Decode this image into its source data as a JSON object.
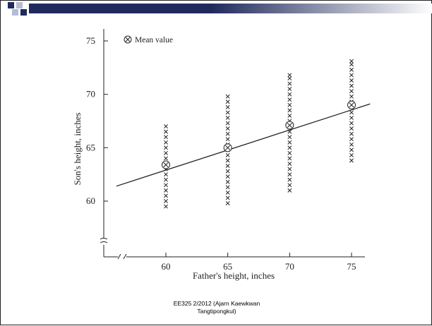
{
  "colors": {
    "banner_dark": "#1f2a5c",
    "banner_light": "#b4bcd8",
    "banner_gradient_end": "#ffffff",
    "ink": "#222222"
  },
  "footer": {
    "line1": "EE325 2/2012 (Ajarn Kaewkwan",
    "line2": "Tangtipongkul)"
  },
  "chart_data": {
    "type": "scatter",
    "title": "",
    "xlabel": "Father's height, inches",
    "ylabel": "Son's height, inches",
    "xlim": [
      56,
      76
    ],
    "ylim": [
      56,
      76
    ],
    "x_ticks": [
      60,
      65,
      70,
      75
    ],
    "y_ticks": [
      60,
      65,
      70,
      75
    ],
    "axis_breaks": true,
    "grid": false,
    "legend": {
      "label": "Mean value",
      "symbol": "circled-x",
      "placement": "top-left"
    },
    "series": [
      {
        "marker": "x",
        "x": 60,
        "y": [
          59.5,
          60.0,
          60.5,
          61.0,
          61.5,
          62.0,
          62.5,
          63.0,
          63.5,
          64.0,
          64.5,
          65.0,
          65.5,
          66.0,
          66.5,
          67.0
        ]
      },
      {
        "marker": "x",
        "x": 65,
        "y": [
          59.8,
          60.3,
          60.8,
          61.3,
          61.8,
          62.3,
          62.8,
          63.3,
          63.8,
          64.3,
          64.8,
          65.3,
          65.8,
          66.3,
          66.8,
          67.3,
          67.8,
          68.3,
          68.8,
          69.3,
          69.8
        ]
      },
      {
        "marker": "x",
        "x": 70,
        "y": [
          61.0,
          61.5,
          62.0,
          62.5,
          63.0,
          63.5,
          64.0,
          64.5,
          65.0,
          65.5,
          66.0,
          66.5,
          67.0,
          67.5,
          68.0,
          68.5,
          69.0,
          69.5,
          70.0,
          70.5,
          71.0,
          71.5,
          71.8
        ]
      },
      {
        "marker": "x",
        "x": 75,
        "y": [
          63.8,
          64.3,
          64.8,
          65.3,
          65.8,
          66.3,
          66.8,
          67.3,
          67.8,
          68.3,
          68.8,
          69.3,
          69.8,
          70.3,
          70.8,
          71.3,
          71.8,
          72.3,
          72.8,
          73.1
        ]
      }
    ],
    "means": [
      {
        "x": 60,
        "y": 63.4
      },
      {
        "x": 65,
        "y": 65.0
      },
      {
        "x": 70,
        "y": 67.1
      },
      {
        "x": 75,
        "y": 69.0
      }
    ],
    "regression_line": {
      "x": [
        56,
        76.5
      ],
      "y": [
        61.4,
        69.1
      ]
    }
  }
}
